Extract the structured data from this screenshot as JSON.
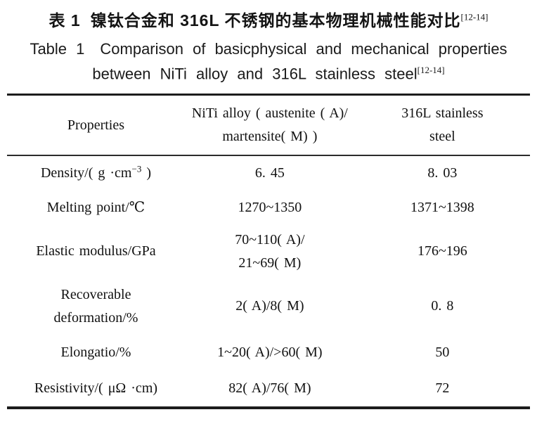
{
  "titles": {
    "chinese_label": "表 1",
    "chinese_text": "镍钛合金和 316L 不锈钢的基本物理机械性能对比",
    "chinese_ref": "[12-14]",
    "english_label": "Table 1",
    "english_text1": "Comparison of basicphysical and mechanical properties",
    "english_text2": "between NiTi alloy and 316L stainless steel",
    "english_ref": "[12-14]"
  },
  "table": {
    "header": {
      "properties": "Properties",
      "niti_line1": "NiTi alloy ( austenite ( A)/",
      "niti_line2": "martensite( M) )",
      "steel_line1": "316L stainless",
      "steel_line2": "steel"
    },
    "rows": [
      {
        "property": "Density/( g ·cm",
        "property_sup": "−3",
        "property_tail": " )",
        "niti": "6. 45",
        "steel": "8. 03"
      },
      {
        "property": "Melting point/℃",
        "niti": "1270~1350",
        "steel": "1371~1398"
      },
      {
        "property": "Elastic modulus/GPa",
        "niti_line1": "70~110( A)/",
        "niti_line2": "21~69( M)",
        "steel": "176~196"
      },
      {
        "property_line1": "Recoverable",
        "property_line2": "deformation/%",
        "niti": "2( A)/8( M)",
        "steel": "0. 8"
      },
      {
        "property": "Elongatio/%",
        "niti": "1~20( A)/>60( M)",
        "steel": "50"
      },
      {
        "property": "Resistivity/( μΩ ·cm)",
        "niti": "82( A)/76( M)",
        "steel": "72"
      }
    ]
  }
}
